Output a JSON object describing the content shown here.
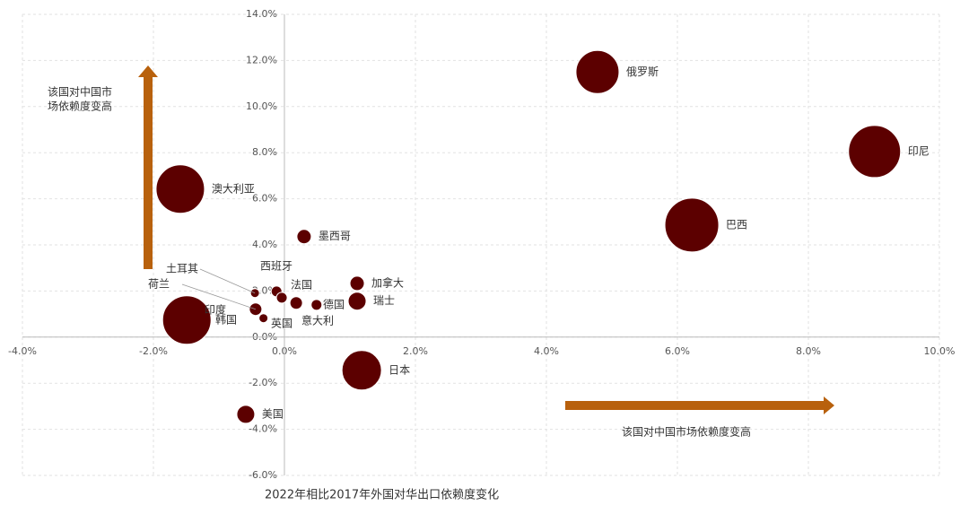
{
  "chart_data": {
    "type": "bubble",
    "x_label": "2022年相比2017年外国对华出口依赖度变化",
    "y_annotation_lines": [
      "该国对中国市",
      "场依赖度变高"
    ],
    "x_annotation": "该国对中国市场依赖度变高",
    "color": "#5c0000",
    "grid": true,
    "xlim": [
      -4,
      10
    ],
    "ylim": [
      -6,
      14
    ],
    "xticks": [
      {
        "value": -4,
        "label": "-4.0%"
      },
      {
        "value": -2,
        "label": "-2.0%"
      },
      {
        "value": 0,
        "label": "0.0%"
      },
      {
        "value": 2,
        "label": "2.0%"
      },
      {
        "value": 4,
        "label": "4.0%"
      },
      {
        "value": 6,
        "label": "6.0%"
      },
      {
        "value": 8,
        "label": "8.0%"
      },
      {
        "value": 10,
        "label": "10.0%"
      }
    ],
    "yticks": [
      {
        "value": -6,
        "label": "-6.0%"
      },
      {
        "value": -4,
        "label": "-4.0%"
      },
      {
        "value": -2,
        "label": "-2.0%"
      },
      {
        "value": 0,
        "label": "0.0%"
      },
      {
        "value": 2,
        "label": "2.0%"
      },
      {
        "value": 4,
        "label": "4.0%"
      },
      {
        "value": 6,
        "label": "6.0%"
      },
      {
        "value": 8,
        "label": "8.0%"
      },
      {
        "value": 10,
        "label": "10.0%"
      },
      {
        "value": 12,
        "label": "12.0%"
      },
      {
        "value": 14,
        "label": "14.0%"
      }
    ],
    "points": [
      {
        "label": "俄罗斯",
        "x": 4.78,
        "y": 11.5,
        "size": 24
      },
      {
        "label": "印尼",
        "x": 9.01,
        "y": 8.05,
        "size": 29
      },
      {
        "label": "巴西",
        "x": 6.22,
        "y": 4.86,
        "size": 30
      },
      {
        "label": "澳大利亚",
        "x": -1.59,
        "y": 6.42,
        "size": 27
      },
      {
        "label": "墨西哥",
        "x": 0.3,
        "y": 4.36,
        "size": 8
      },
      {
        "label": "加拿大",
        "x": 1.11,
        "y": 2.33,
        "size": 8
      },
      {
        "label": "瑞士",
        "x": 1.11,
        "y": 1.56,
        "size": 10
      },
      {
        "label": "德国",
        "x": 0.49,
        "y": 1.4,
        "size": 6
      },
      {
        "label": "法国",
        "x": 0.18,
        "y": 1.48,
        "size": 7
      },
      {
        "label": "西班牙",
        "x": -0.12,
        "y": 1.98,
        "size": 6
      },
      {
        "label": "意大利",
        "x": -0.04,
        "y": 1.71,
        "size": 6
      },
      {
        "label": "土耳其",
        "x": -0.45,
        "y": 1.91,
        "size": 5
      },
      {
        "label": "荷兰",
        "x": -0.44,
        "y": 1.21,
        "size": 7
      },
      {
        "label": "英国",
        "x": -0.32,
        "y": 0.82,
        "size": 5
      },
      {
        "label": "韩国",
        "x": -1.45,
        "y": 0.7,
        "size": 15
      },
      {
        "label": "印度",
        "x": -1.49,
        "y": 0.74,
        "size": 27
      },
      {
        "label": "日本",
        "x": 1.18,
        "y": -1.44,
        "size": 22
      },
      {
        "label": "美国",
        "x": -0.59,
        "y": -3.35,
        "size": 10
      }
    ]
  }
}
